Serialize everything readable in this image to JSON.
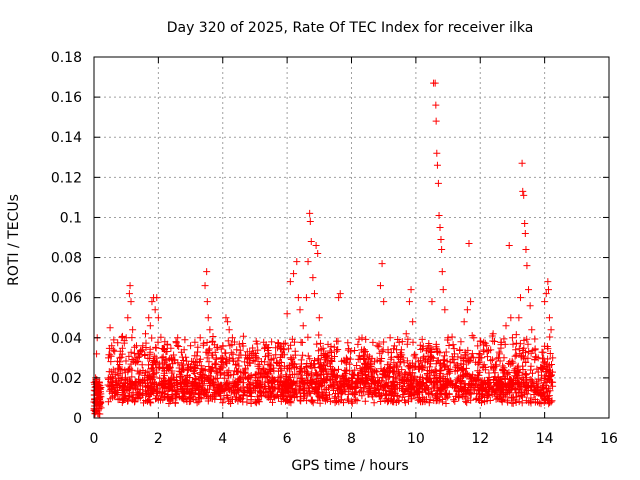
{
  "chart_data": {
    "type": "scatter",
    "title": "Day 320 of 2025, Rate Of TEC Index for receiver ilka",
    "xlabel": "GPS time / hours",
    "ylabel": "ROTI / TECUs",
    "xlim": [
      0,
      16
    ],
    "ylim": [
      0,
      0.18
    ],
    "xticks": [
      "0",
      "2",
      "4",
      "6",
      "8",
      "10",
      "12",
      "14",
      "16"
    ],
    "yticks": [
      "0",
      "0.02",
      "0.04",
      "0.06",
      "0.08",
      "0.1",
      "0.12",
      "0.14",
      "0.16",
      "0.18"
    ],
    "grid": true,
    "marker": "+",
    "series": [
      {
        "name": "ROTI",
        "color": "#ff0000",
        "points": [
          [
            0.0,
            0.008
          ],
          [
            0.03,
            0.004
          ],
          [
            0.05,
            0.02
          ],
          [
            0.08,
            0.032
          ],
          [
            0.1,
            0.04
          ],
          [
            0.12,
            0.012
          ],
          [
            0.15,
            0.006
          ],
          [
            0.18,
            0.002
          ],
          [
            0.45,
            0.03
          ],
          [
            0.5,
            0.045
          ],
          [
            0.55,
            0.036
          ],
          [
            0.6,
            0.024
          ],
          [
            0.7,
            0.018
          ],
          [
            0.8,
            0.028
          ],
          [
            0.9,
            0.016
          ],
          [
            1.0,
            0.04
          ],
          [
            1.05,
            0.05
          ],
          [
            1.1,
            0.062
          ],
          [
            1.12,
            0.066
          ],
          [
            1.15,
            0.058
          ],
          [
            1.2,
            0.044
          ],
          [
            1.3,
            0.03
          ],
          [
            1.4,
            0.022
          ],
          [
            1.5,
            0.034
          ],
          [
            1.6,
            0.042
          ],
          [
            1.7,
            0.05
          ],
          [
            1.75,
            0.046
          ],
          [
            1.8,
            0.058
          ],
          [
            1.85,
            0.06
          ],
          [
            1.9,
            0.054
          ],
          [
            1.95,
            0.06
          ],
          [
            2.0,
            0.05
          ],
          [
            2.2,
            0.038
          ],
          [
            2.4,
            0.03
          ],
          [
            2.6,
            0.04
          ],
          [
            2.8,
            0.034
          ],
          [
            3.0,
            0.036
          ],
          [
            3.2,
            0.028
          ],
          [
            3.3,
            0.04
          ],
          [
            3.45,
            0.066
          ],
          [
            3.5,
            0.073
          ],
          [
            3.52,
            0.058
          ],
          [
            3.55,
            0.05
          ],
          [
            3.6,
            0.044
          ],
          [
            3.8,
            0.03
          ],
          [
            4.0,
            0.036
          ],
          [
            4.1,
            0.05
          ],
          [
            4.15,
            0.048
          ],
          [
            4.2,
            0.044
          ],
          [
            4.3,
            0.04
          ],
          [
            4.5,
            0.03
          ],
          [
            4.7,
            0.024
          ],
          [
            4.9,
            0.032
          ],
          [
            5.1,
            0.02
          ],
          [
            5.3,
            0.028
          ],
          [
            5.5,
            0.026
          ],
          [
            5.7,
            0.018
          ],
          [
            5.9,
            0.034
          ],
          [
            6.0,
            0.052
          ],
          [
            6.1,
            0.068
          ],
          [
            6.2,
            0.072
          ],
          [
            6.3,
            0.078
          ],
          [
            6.35,
            0.06
          ],
          [
            6.4,
            0.054
          ],
          [
            6.5,
            0.046
          ],
          [
            6.6,
            0.06
          ],
          [
            6.65,
            0.078
          ],
          [
            6.7,
            0.102
          ],
          [
            6.72,
            0.098
          ],
          [
            6.75,
            0.088
          ],
          [
            6.8,
            0.07
          ],
          [
            6.85,
            0.062
          ],
          [
            6.9,
            0.086
          ],
          [
            6.95,
            0.082
          ],
          [
            7.0,
            0.05
          ],
          [
            7.2,
            0.032
          ],
          [
            7.4,
            0.024
          ],
          [
            7.6,
            0.06
          ],
          [
            7.65,
            0.062
          ],
          [
            7.8,
            0.028
          ],
          [
            8.0,
            0.02
          ],
          [
            8.2,
            0.018
          ],
          [
            8.4,
            0.034
          ],
          [
            8.6,
            0.028
          ],
          [
            8.8,
            0.036
          ],
          [
            8.9,
            0.066
          ],
          [
            8.95,
            0.077
          ],
          [
            9.0,
            0.058
          ],
          [
            9.2,
            0.04
          ],
          [
            9.4,
            0.034
          ],
          [
            9.6,
            0.03
          ],
          [
            9.7,
            0.042
          ],
          [
            9.8,
            0.058
          ],
          [
            9.85,
            0.064
          ],
          [
            9.9,
            0.048
          ],
          [
            10.0,
            0.03
          ],
          [
            10.2,
            0.026
          ],
          [
            10.4,
            0.036
          ],
          [
            10.5,
            0.058
          ],
          [
            10.55,
            0.167
          ],
          [
            10.6,
            0.167
          ],
          [
            10.62,
            0.156
          ],
          [
            10.63,
            0.148
          ],
          [
            10.65,
            0.132
          ],
          [
            10.67,
            0.126
          ],
          [
            10.7,
            0.117
          ],
          [
            10.72,
            0.101
          ],
          [
            10.75,
            0.095
          ],
          [
            10.78,
            0.089
          ],
          [
            10.8,
            0.084
          ],
          [
            10.82,
            0.073
          ],
          [
            10.85,
            0.064
          ],
          [
            10.9,
            0.054
          ],
          [
            11.0,
            0.04
          ],
          [
            11.2,
            0.032
          ],
          [
            11.4,
            0.038
          ],
          [
            11.5,
            0.048
          ],
          [
            11.6,
            0.054
          ],
          [
            11.65,
            0.087
          ],
          [
            11.7,
            0.058
          ],
          [
            11.8,
            0.04
          ],
          [
            12.0,
            0.03
          ],
          [
            12.2,
            0.036
          ],
          [
            12.4,
            0.042
          ],
          [
            12.6,
            0.032
          ],
          [
            12.8,
            0.046
          ],
          [
            12.9,
            0.086
          ],
          [
            12.95,
            0.05
          ],
          [
            13.0,
            0.04
          ],
          [
            13.1,
            0.034
          ],
          [
            13.2,
            0.05
          ],
          [
            13.25,
            0.06
          ],
          [
            13.3,
            0.127
          ],
          [
            13.32,
            0.113
          ],
          [
            13.35,
            0.111
          ],
          [
            13.38,
            0.097
          ],
          [
            13.4,
            0.092
          ],
          [
            13.42,
            0.084
          ],
          [
            13.45,
            0.076
          ],
          [
            13.5,
            0.064
          ],
          [
            13.55,
            0.056
          ],
          [
            13.6,
            0.044
          ],
          [
            13.7,
            0.034
          ],
          [
            13.8,
            0.03
          ],
          [
            14.0,
            0.058
          ],
          [
            14.05,
            0.062
          ],
          [
            14.1,
            0.068
          ],
          [
            14.12,
            0.064
          ],
          [
            14.15,
            0.05
          ],
          [
            14.2,
            0.044
          ],
          [
            14.25,
            0.03
          ]
        ]
      }
    ]
  }
}
